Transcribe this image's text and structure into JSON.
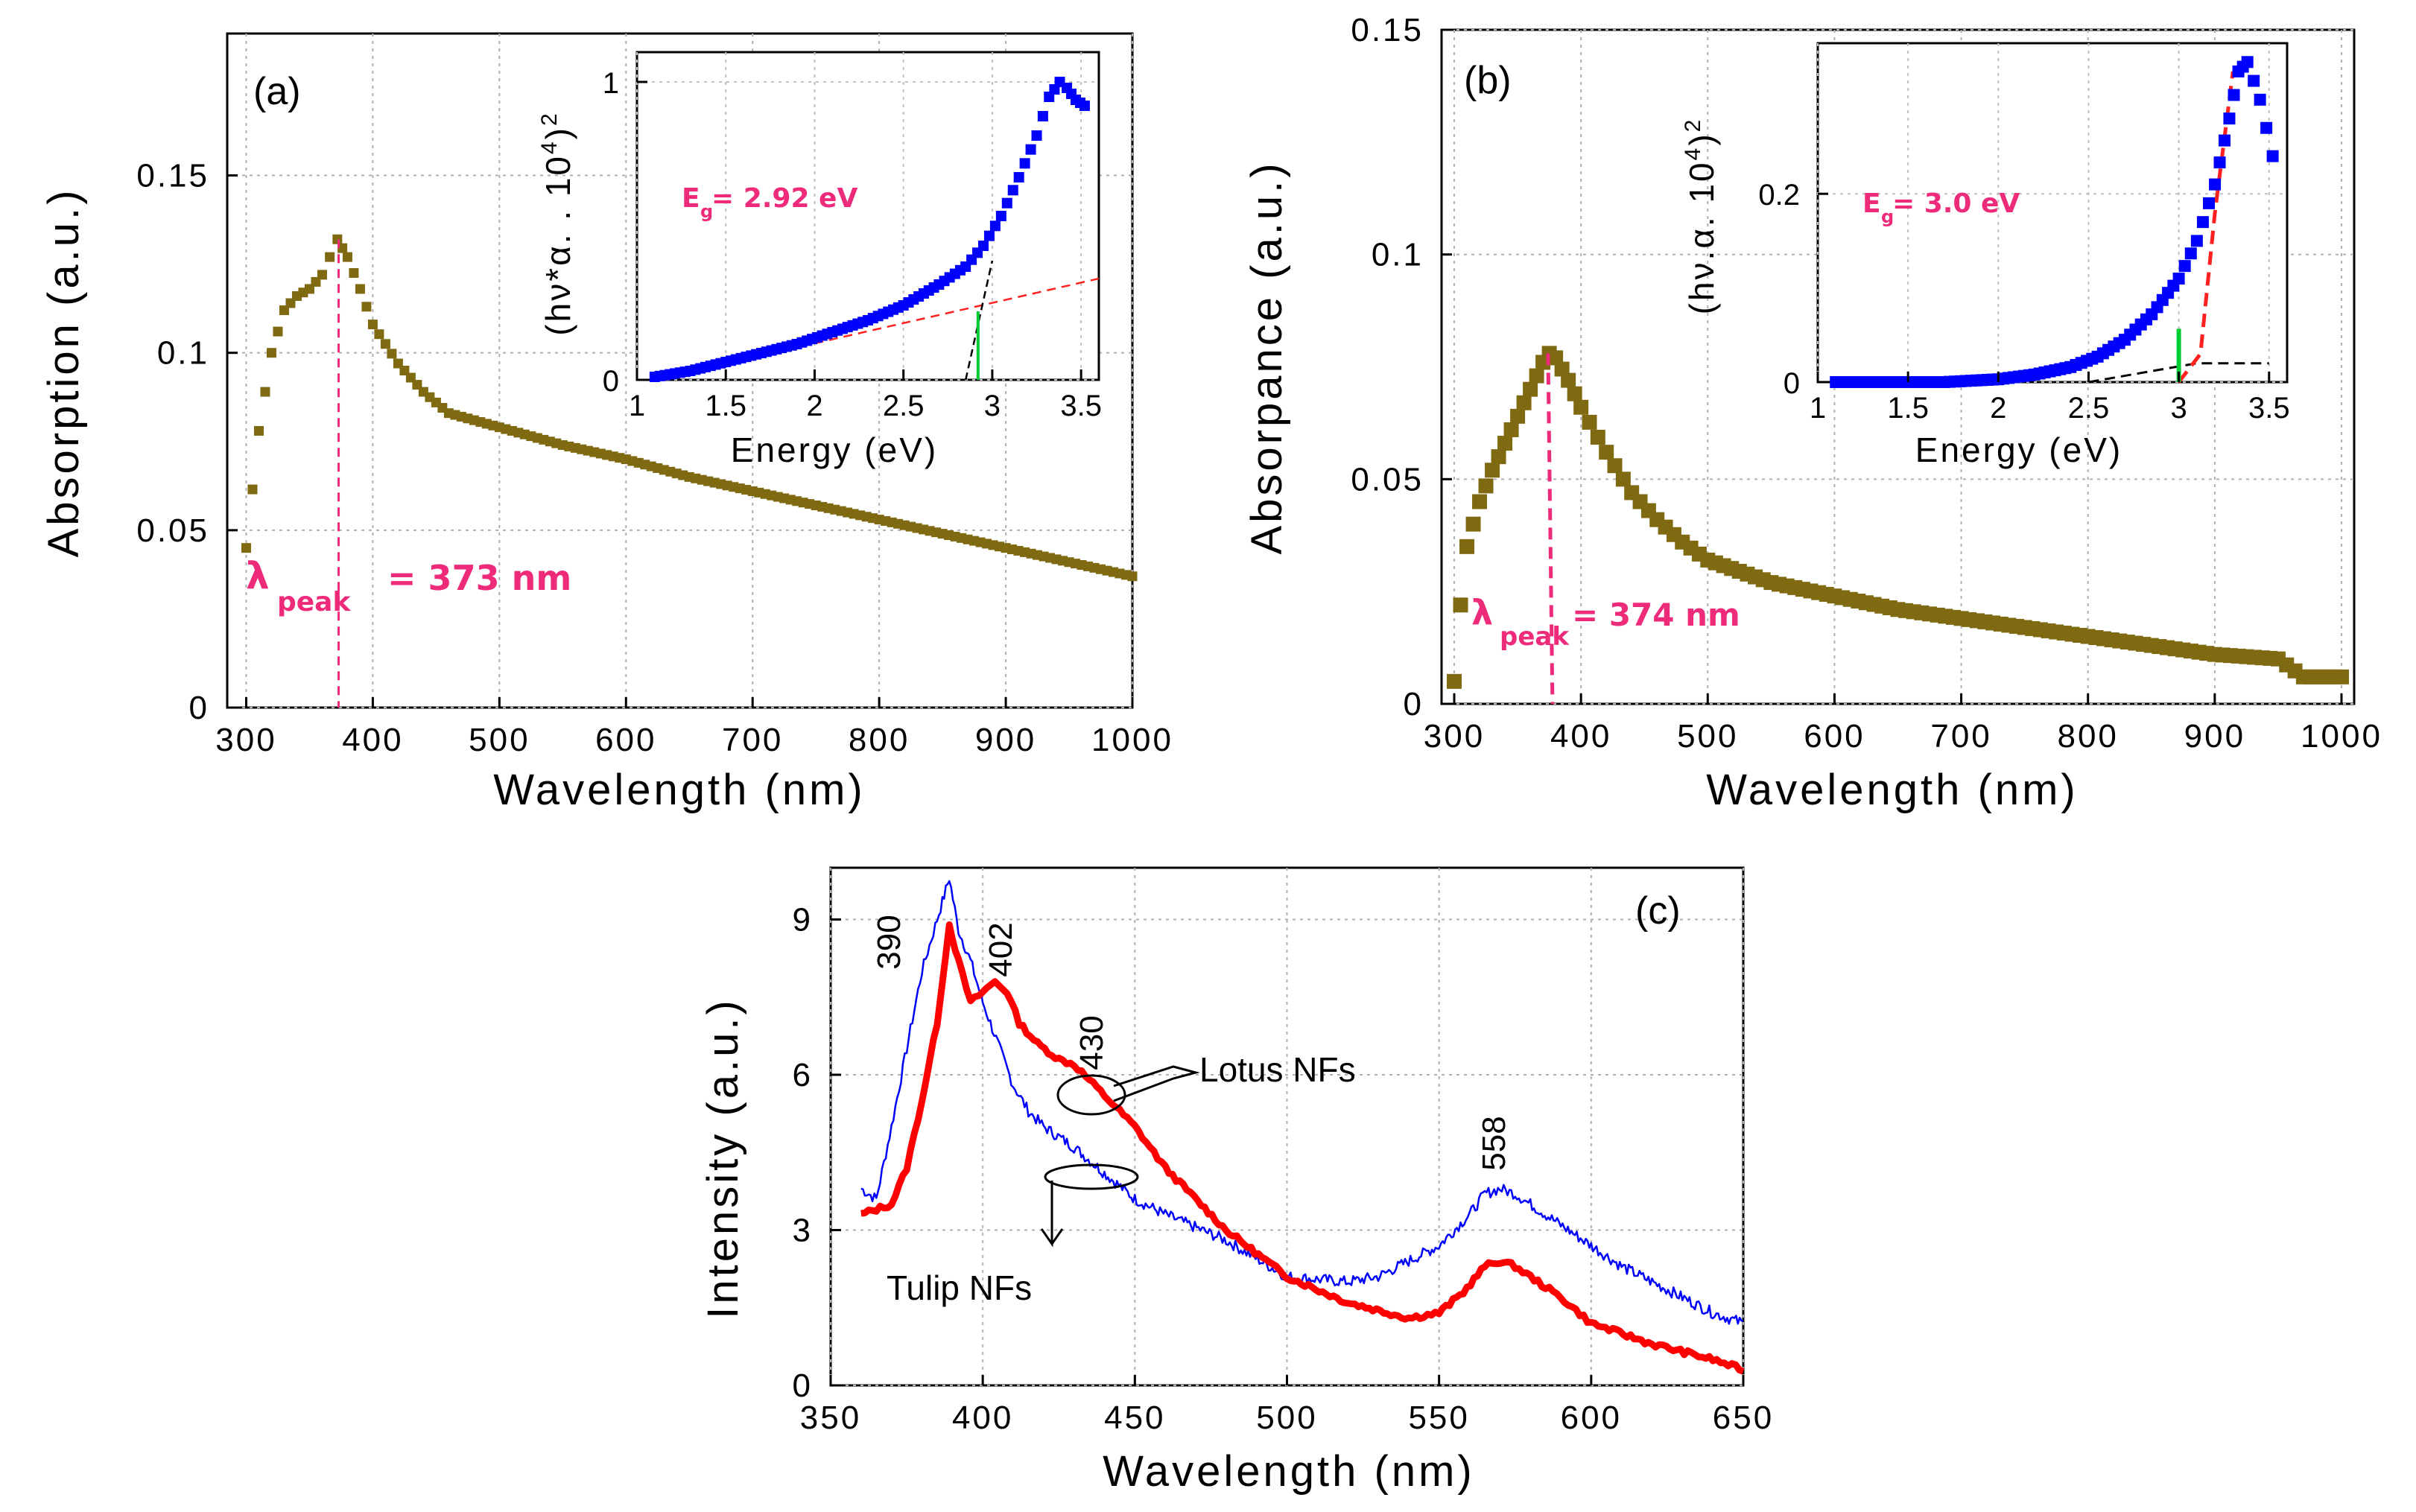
{
  "chart_data": [
    {
      "panel": "(a)",
      "type": "scatter",
      "xlabel": "Wavelength (nm)",
      "ylabel": "Absorption (a.u.)",
      "xlim": [
        285,
        1000
      ],
      "ylim": [
        0,
        0.19
      ],
      "xticks": [
        "300",
        "400",
        "500",
        "600",
        "700",
        "800",
        "900",
        "1000"
      ],
      "yticks": [
        "0",
        "0.05",
        "0.1",
        "0.15"
      ],
      "color": "#7f6a12",
      "x": [
        300,
        310,
        320,
        330,
        340,
        350,
        360,
        366,
        372,
        380,
        390,
        400,
        420,
        440,
        460,
        500,
        550,
        600,
        650,
        700,
        750,
        800,
        850,
        900,
        950,
        1000
      ],
      "y": [
        0.045,
        0.078,
        0.1,
        0.112,
        0.116,
        0.118,
        0.122,
        0.127,
        0.132,
        0.127,
        0.118,
        0.108,
        0.097,
        0.089,
        0.083,
        0.079,
        0.074,
        0.07,
        0.065,
        0.061,
        0.057,
        0.053,
        0.049,
        0.045,
        0.041,
        0.037
      ],
      "annotation": {
        "symbol": "λ",
        "sub": "peak",
        "text": "= 373 nm",
        "peak_x": 373
      },
      "inset": {
        "xlabel": "Energy (eV)",
        "ylabel_main": "(hν*α. . 10",
        "ylabel_sup_small": "4",
        "ylabel_close": ")",
        "ylabel_sup": "2",
        "xlim": [
          1,
          3.6
        ],
        "ylim": [
          0,
          1.1
        ],
        "xticks": [
          "1",
          "1.5",
          "2",
          "2.5",
          "3",
          "3.5"
        ],
        "yticks": [
          "0",
          "1"
        ],
        "series_color": "#0000ff",
        "x": [
          1.1,
          1.3,
          1.5,
          1.7,
          1.9,
          2.1,
          2.3,
          2.5,
          2.7,
          2.85,
          2.95,
          3.05,
          3.15,
          3.25,
          3.32,
          3.38,
          3.42,
          3.47,
          3.52
        ],
        "y": [
          0.01,
          0.03,
          0.06,
          0.09,
          0.12,
          0.16,
          0.2,
          0.25,
          0.32,
          0.38,
          0.45,
          0.55,
          0.68,
          0.82,
          0.95,
          1.0,
          0.98,
          0.94,
          0.92
        ],
        "baseline_fit": {
          "x": [
            1.1,
            3.6
          ],
          "y": [
            0.0,
            0.34
          ],
          "color": "#ff2020"
        },
        "edge_fit": {
          "x": [
            2.85,
            3.0
          ],
          "y": [
            0.0,
            0.4
          ],
          "color": "#000000"
        },
        "eg_marker": {
          "x": 2.92,
          "y_top": 0.23,
          "color": "#00cc33"
        },
        "annotation": {
          "prefix": "E",
          "sub": "g",
          "text": " = 2.92 eV"
        }
      }
    },
    {
      "panel": "(b)",
      "type": "scatter",
      "xlabel": "Wavelength (nm)",
      "ylabel": "Absorpance (a.u.)",
      "xlim": [
        290,
        1010
      ],
      "ylim": [
        0,
        0.15
      ],
      "xticks": [
        "300",
        "400",
        "500",
        "600",
        "700",
        "800",
        "900",
        "1000"
      ],
      "yticks": [
        "0",
        "0.05",
        "0.1",
        "0.15"
      ],
      "color": "#7f6a12",
      "x": [
        300,
        305,
        310,
        320,
        330,
        340,
        350,
        360,
        370,
        375,
        380,
        390,
        400,
        420,
        440,
        460,
        480,
        500,
        550,
        600,
        650,
        700,
        750,
        800,
        850,
        900,
        950,
        970,
        1000
      ],
      "y": [
        0.005,
        0.022,
        0.035,
        0.045,
        0.052,
        0.058,
        0.064,
        0.07,
        0.076,
        0.078,
        0.077,
        0.072,
        0.066,
        0.056,
        0.047,
        0.041,
        0.036,
        0.032,
        0.027,
        0.024,
        0.021,
        0.019,
        0.017,
        0.015,
        0.013,
        0.011,
        0.01,
        0.006,
        0.006
      ],
      "annotation": {
        "symbol": "λ",
        "sub": "peak",
        "text": " = 374 nm",
        "peak_x": 374
      },
      "inset": {
        "xlabel": "Energy (eV)",
        "ylabel_main": "(hν.α. 10",
        "ylabel_sup_small": "4",
        "ylabel_close": ")",
        "ylabel_sup": "2",
        "xlim": [
          1,
          3.6
        ],
        "ylim": [
          0,
          0.36
        ],
        "xticks": [
          "1",
          "1.5",
          "2",
          "2.5",
          "3",
          "3.5"
        ],
        "yticks": [
          "0",
          "0.2"
        ],
        "series_color": "#0000ff",
        "x": [
          1.1,
          1.4,
          1.7,
          2.0,
          2.2,
          2.4,
          2.55,
          2.7,
          2.85,
          3.0,
          3.1,
          3.2,
          3.28,
          3.33,
          3.38,
          3.45,
          3.52
        ],
        "y": [
          0.0,
          0.0,
          0.0,
          0.003,
          0.008,
          0.016,
          0.027,
          0.045,
          0.072,
          0.11,
          0.15,
          0.21,
          0.28,
          0.33,
          0.34,
          0.3,
          0.24
        ],
        "baseline_fit": {
          "x": [
            2.5,
            3.1,
            3.5
          ],
          "y": [
            0.0,
            0.02,
            0.02
          ],
          "color": "#000000"
        },
        "edge_fit": {
          "x": [
            3.0,
            3.12,
            3.2,
            3.3
          ],
          "y": [
            0.0,
            0.03,
            0.18,
            0.33
          ],
          "color": "#ff2020"
        },
        "eg_marker": {
          "x": 3.0,
          "y_top": 0.025,
          "color": "#00cc33"
        },
        "annotation": {
          "prefix": "E",
          "sub": "g",
          "text": " = 3.0 eV"
        }
      }
    },
    {
      "panel": "(c)",
      "type": "line",
      "xlabel": "Wavelength (nm)",
      "ylabel": "Intensity (a.u.)",
      "xlim": [
        350,
        650
      ],
      "ylim": [
        0,
        10
      ],
      "xticks": [
        "350",
        "400",
        "450",
        "500",
        "550",
        "600",
        "650"
      ],
      "yticks": [
        "0",
        "3",
        "6",
        "9"
      ],
      "series": [
        {
          "name": "Lotus NFs",
          "color": "#ff0000",
          "x": [
            360,
            370,
            375,
            380,
            385,
            389,
            392,
            396,
            400,
            404,
            408,
            412,
            418,
            425,
            430,
            440,
            450,
            460,
            480,
            500,
            520,
            540,
            550,
            558,
            565,
            570,
            575,
            580,
            590,
            600,
            620,
            640,
            650
          ],
          "y": [
            3.3,
            3.5,
            4.2,
            5.5,
            7.0,
            8.9,
            8.2,
            7.4,
            7.6,
            7.8,
            7.6,
            7.0,
            6.6,
            6.3,
            6.2,
            5.6,
            5.0,
            4.2,
            3.0,
            2.1,
            1.6,
            1.3,
            1.4,
            1.8,
            2.3,
            2.4,
            2.3,
            2.1,
            1.7,
            1.2,
            0.8,
            0.5,
            0.3
          ]
        },
        {
          "name": "Tulip NFs",
          "color": "#0000ff",
          "x": [
            360,
            365,
            370,
            375,
            380,
            385,
            389,
            392,
            396,
            400,
            405,
            410,
            415,
            420,
            430,
            440,
            450,
            460,
            480,
            500,
            520,
            530,
            540,
            550,
            560,
            565,
            570,
            575,
            580,
            590,
            600,
            610,
            620,
            630,
            640,
            650
          ],
          "y": [
            3.8,
            3.6,
            5.0,
            6.5,
            8.0,
            9.0,
            9.8,
            8.8,
            8.2,
            7.4,
            6.6,
            5.8,
            5.3,
            5.0,
            4.6,
            4.1,
            3.6,
            3.3,
            2.8,
            2.1,
            2.0,
            2.1,
            2.4,
            2.7,
            3.3,
            3.7,
            3.8,
            3.7,
            3.5,
            3.1,
            2.7,
            2.3,
            2.0,
            1.7,
            1.4,
            1.2
          ]
        }
      ],
      "annotations": [
        {
          "text": "390",
          "x": 390,
          "y": 9.1
        },
        {
          "text": "402",
          "x": 405,
          "y": 8.4
        },
        {
          "text": "430",
          "x": 430,
          "y": 6.7
        },
        {
          "text": "558",
          "x": 564,
          "y": 4.2
        },
        {
          "text": "Lotus NFs"
        },
        {
          "text": "Tulip NFs"
        }
      ]
    }
  ]
}
